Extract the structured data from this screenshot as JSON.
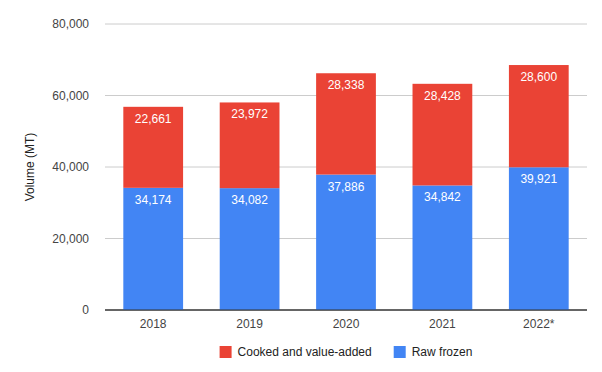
{
  "chart_data": {
    "type": "bar",
    "stacked": true,
    "data_labels": true,
    "grid": true,
    "legend": "bottom",
    "y_label": "Volume (MT)",
    "categories": [
      "2018",
      "2019",
      "2020",
      "2021",
      "2022*"
    ],
    "series": [
      {
        "name": "Raw frozen",
        "color": "#4285f4",
        "values": [
          34174,
          34082,
          37886,
          34842,
          39921
        ],
        "value_labels": [
          "34,174",
          "34,082",
          "37,886",
          "34,842",
          "39,921"
        ]
      },
      {
        "name": "Cooked and value-added",
        "color": "#ea4335",
        "values": [
          22661,
          23972,
          28338,
          28428,
          28600
        ],
        "value_labels": [
          "22,661",
          "23,972",
          "28,338",
          "28,428",
          "28,600"
        ]
      }
    ],
    "ylim": [
      0,
      80000
    ],
    "yticks": [
      0,
      {
        "value": 20000,
        "label": "20,000"
      },
      {
        "value": 40000,
        "label": "40,000"
      },
      {
        "value": 60000,
        "label": "60,000"
      },
      {
        "value": 80000,
        "label": "80,000"
      }
    ]
  }
}
